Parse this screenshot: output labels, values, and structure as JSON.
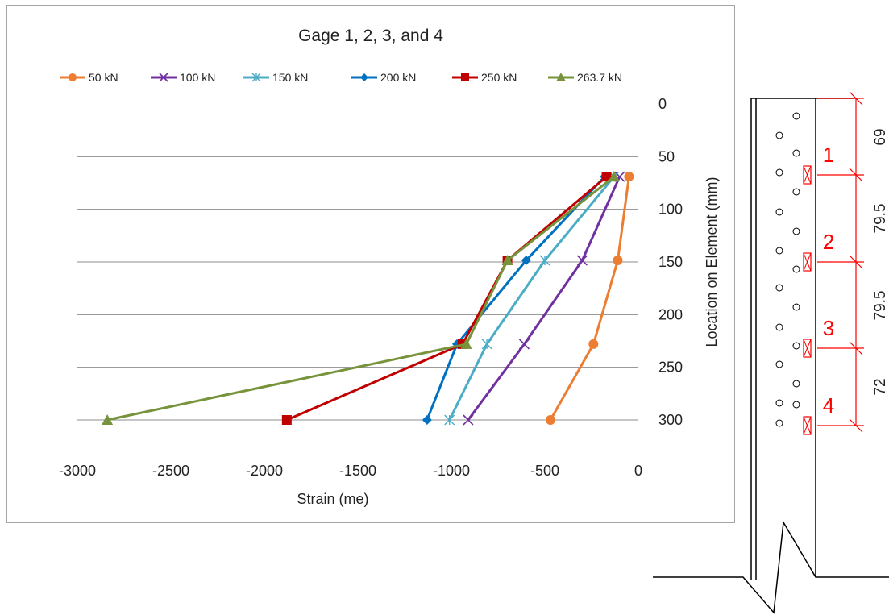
{
  "chart_data": {
    "type": "line",
    "title": "Gage 1, 2, 3, and 4",
    "xlabel": "Strain (me)",
    "ylabel": "Location on Element (mm)",
    "xlim": [
      -3000,
      0
    ],
    "ylim": [
      0,
      300
    ],
    "y_reversed": true,
    "x_ticks": [
      "-3000",
      "-2500",
      "-2000",
      "-1500",
      "-1000",
      "-500",
      "0"
    ],
    "y_ticks": [
      "0",
      "50",
      "100",
      "150",
      "200",
      "250",
      "300"
    ],
    "grid": "horizontal",
    "legend_position": "top",
    "series": [
      {
        "name": "50 kN",
        "color": "#ED7D31",
        "marker": "circle",
        "points": [
          [
            -50,
            69
          ],
          [
            -110,
            148.5
          ],
          [
            -240,
            228
          ],
          [
            -470,
            300
          ]
        ]
      },
      {
        "name": "100 kN",
        "color": "#7030A0",
        "marker": "x",
        "points": [
          [
            -100,
            69
          ],
          [
            -300,
            148.5
          ],
          [
            -610,
            228
          ],
          [
            -910,
            300
          ]
        ]
      },
      {
        "name": "150 kN",
        "color": "#4BACC6",
        "marker": "star",
        "points": [
          [
            -130,
            69
          ],
          [
            -500,
            148.5
          ],
          [
            -810,
            228
          ],
          [
            -1010,
            300
          ]
        ]
      },
      {
        "name": "200 kN",
        "color": "#0070C0",
        "marker": "diamond",
        "points": [
          [
            -180,
            69
          ],
          [
            -600,
            148.5
          ],
          [
            -970,
            228
          ],
          [
            -1130,
            300
          ]
        ]
      },
      {
        "name": "250 kN",
        "color": "#C00000",
        "marker": "square",
        "points": [
          [
            -170,
            69
          ],
          [
            -700,
            148.5
          ],
          [
            -940,
            228
          ],
          [
            -1880,
            300
          ]
        ]
      },
      {
        "name": "263.7 kN",
        "color": "#77933C",
        "marker": "triangle",
        "points": [
          [
            -130,
            69
          ],
          [
            -700,
            148.5
          ],
          [
            -920,
            228
          ],
          [
            -2840,
            300
          ]
        ]
      }
    ]
  },
  "drawing": {
    "gage_labels": [
      "1",
      "2",
      "3",
      "4"
    ],
    "dimensions": [
      "69",
      "79.5",
      "79.5",
      "72"
    ],
    "gage_color": "#FF0000"
  }
}
